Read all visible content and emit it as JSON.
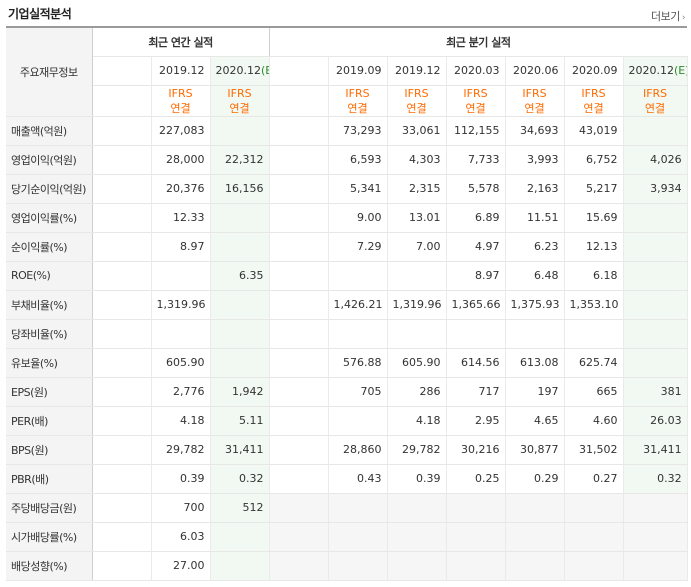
{
  "header": {
    "title": "기업실적분석",
    "more_label": "더보기"
  },
  "table": {
    "row_header_title": "주요재무정보",
    "annual_group_label": "최근 연간 실적",
    "quarter_group_label": "최근 분기 실적",
    "annual_periods": [
      "2019.12",
      "2020.12"
    ],
    "annual_estimate_suffix": "(E)",
    "quarter_periods": [
      "2019.09",
      "2019.12",
      "2020.03",
      "2020.06",
      "2020.09",
      "2020.12"
    ],
    "ifrs_line1": "IFRS",
    "ifrs_line2": "연결",
    "rows": [
      {
        "label": "매출액(억원)",
        "annual": [
          "227,083",
          ""
        ],
        "quarter": [
          "73,293",
          "33,061",
          "112,155",
          "34,693",
          "43,019",
          ""
        ]
      },
      {
        "label": "영업이익(억원)",
        "annual": [
          "28,000",
          "22,312"
        ],
        "quarter": [
          "6,593",
          "4,303",
          "7,733",
          "3,993",
          "6,752",
          "4,026"
        ]
      },
      {
        "label": "당기순이익(억원)",
        "annual": [
          "20,376",
          "16,156"
        ],
        "quarter": [
          "5,341",
          "2,315",
          "5,578",
          "2,163",
          "5,217",
          "3,934"
        ]
      },
      {
        "label": "영업이익률(%)",
        "annual": [
          "12.33",
          ""
        ],
        "quarter": [
          "9.00",
          "13.01",
          "6.89",
          "11.51",
          "15.69",
          ""
        ]
      },
      {
        "label": "순이익률(%)",
        "annual": [
          "8.97",
          ""
        ],
        "quarter": [
          "7.29",
          "7.00",
          "4.97",
          "6.23",
          "12.13",
          ""
        ]
      },
      {
        "label": "ROE(%)",
        "annual": [
          "",
          "6.35"
        ],
        "quarter": [
          "",
          "",
          "8.97",
          "6.48",
          "6.18",
          ""
        ]
      },
      {
        "label": "부채비율(%)",
        "annual": [
          "1,319.96",
          ""
        ],
        "quarter": [
          "1,426.21",
          "1,319.96",
          "1,365.66",
          "1,375.93",
          "1,353.10",
          ""
        ]
      },
      {
        "label": "당좌비율(%)",
        "annual": [
          "",
          ""
        ],
        "quarter": [
          "",
          "",
          "",
          "",
          "",
          ""
        ]
      },
      {
        "label": "유보율(%)",
        "annual": [
          "605.90",
          ""
        ],
        "quarter": [
          "576.88",
          "605.90",
          "614.56",
          "613.08",
          "625.74",
          ""
        ]
      },
      {
        "label": "EPS(원)",
        "annual": [
          "2,776",
          "1,942"
        ],
        "quarter": [
          "705",
          "286",
          "717",
          "197",
          "665",
          "381"
        ]
      },
      {
        "label": "PER(배)",
        "annual": [
          "4.18",
          "5.11"
        ],
        "quarter": [
          "",
          "4.18",
          "2.95",
          "4.65",
          "4.60",
          "26.03"
        ]
      },
      {
        "label": "BPS(원)",
        "annual": [
          "29,782",
          "31,411"
        ],
        "quarter": [
          "28,860",
          "29,782",
          "30,216",
          "30,877",
          "31,502",
          "31,411"
        ]
      },
      {
        "label": "PBR(배)",
        "annual": [
          "0.39",
          "0.32"
        ],
        "quarter": [
          "0.43",
          "0.39",
          "0.25",
          "0.29",
          "0.27",
          "0.32"
        ]
      },
      {
        "label": "주당배당금(원)",
        "annual": [
          "700",
          "512"
        ],
        "quarter": [
          "",
          "",
          "",
          "",
          "",
          ""
        ]
      },
      {
        "label": "시가배당률(%)",
        "annual": [
          "6.03",
          ""
        ],
        "quarter": [
          "",
          "",
          "",
          "",
          "",
          ""
        ]
      },
      {
        "label": "배당성향(%)",
        "annual": [
          "27.00",
          ""
        ],
        "quarter": [
          "",
          "",
          "",
          "",
          "",
          ""
        ]
      }
    ]
  },
  "colors": {
    "ifrs_text": "#ff6a00",
    "estimate_bg": "#f2f9f2",
    "estimate_mark": "#2d8a2d",
    "label_bg": "#f4f4f4"
  }
}
